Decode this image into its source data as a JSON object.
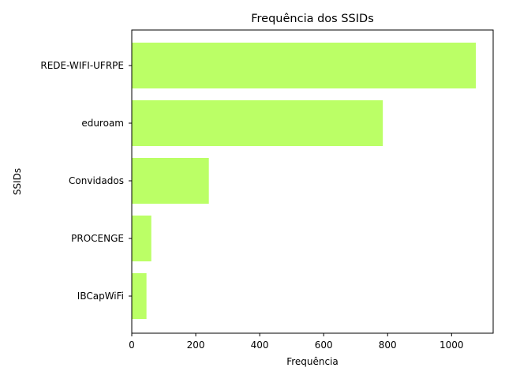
{
  "chart_data": {
    "type": "bar",
    "orientation": "horizontal",
    "title": "Frequência dos SSIDs",
    "xlabel": "Frequência",
    "ylabel": "SSIDs",
    "categories": [
      "REDE-WIFI-UFRPE",
      "eduroam",
      "Convidados",
      "PROCENGE",
      "IBCapWiFi"
    ],
    "values": [
      1076,
      785,
      241,
      61,
      46
    ],
    "xlim": [
      0,
      1130
    ],
    "xticks": [
      0,
      200,
      400,
      600,
      800,
      1000
    ],
    "bar_color": "#bbff66",
    "grid": false,
    "legend": "none"
  }
}
